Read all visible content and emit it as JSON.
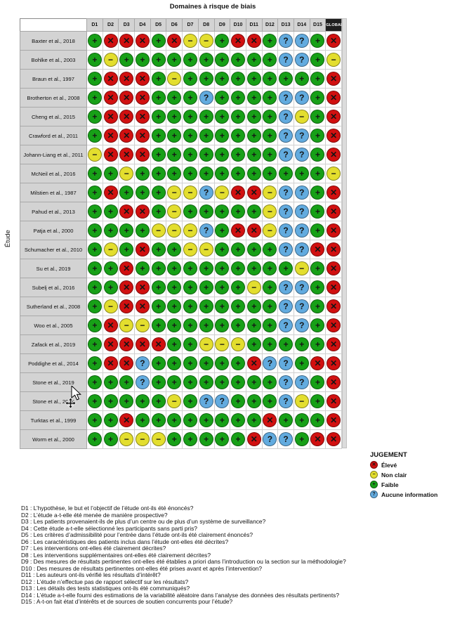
{
  "title": "Domaines à risque de biais",
  "y_axis_label": "Étude",
  "legend": {
    "title": "JUGEMENT",
    "items": [
      {
        "label": "Élevé",
        "symbol": "✕",
        "color": "#d11010"
      },
      {
        "label": "Non clair",
        "symbol": "−",
        "color": "#e3de2e"
      },
      {
        "label": "Faible",
        "symbol": "+",
        "color": "#17a017"
      },
      {
        "label": "Aucune information",
        "symbol": "?",
        "color": "#62abdf"
      }
    ]
  },
  "symbol_colors": {
    "+": "#17a017",
    "X": "#d11010",
    "-": "#e3de2e",
    "?": "#62abdf"
  },
  "glyphs": {
    "+": "+",
    "X": "✕",
    "-": "−",
    "?": "?"
  },
  "judgment_key": {
    "+": "Faible",
    "X": "Élevé",
    "-": "Non clair",
    "?": "Aucune information"
  },
  "judgment_ascii": {
    "+": "faible",
    "X": "eleve",
    "-": "non-clair",
    "?": "aucune-information"
  },
  "chart_data": {
    "type": "heatmap",
    "title": "Domaines à risque de biais",
    "ylabel": "Étude",
    "legend_position": "right",
    "columns": [
      "D1",
      "D2",
      "D3",
      "D4",
      "D5",
      "D6",
      "D7",
      "D8",
      "D9",
      "D10",
      "D11",
      "D12",
      "D13",
      "D14",
      "D15",
      "GLOBAL"
    ],
    "rows": [
      {
        "study": "Baxter et al., 2018",
        "judgments": [
          "+",
          "X",
          "X",
          "X",
          "+",
          "X",
          "-",
          "-",
          "+",
          "X",
          "X",
          "+",
          "?",
          "?",
          "+",
          "X"
        ]
      },
      {
        "study": "Bohlke et al., 2003",
        "judgments": [
          "+",
          "-",
          "+",
          "+",
          "+",
          "+",
          "+",
          "+",
          "+",
          "+",
          "+",
          "+",
          "?",
          "?",
          "+",
          "-"
        ]
      },
      {
        "study": "Braun et al., 1997",
        "judgments": [
          "+",
          "X",
          "X",
          "X",
          "+",
          "-",
          "+",
          "+",
          "+",
          "+",
          "+",
          "+",
          "+",
          "+",
          "+",
          "X"
        ]
      },
      {
        "study": "Brotherton et al., 2008",
        "judgments": [
          "+",
          "X",
          "X",
          "X",
          "+",
          "+",
          "+",
          "?",
          "+",
          "+",
          "+",
          "+",
          "?",
          "?",
          "+",
          "X"
        ]
      },
      {
        "study": "Cheng et al., 2015",
        "judgments": [
          "+",
          "X",
          "X",
          "X",
          "+",
          "+",
          "+",
          "+",
          "+",
          "+",
          "+",
          "+",
          "?",
          "-",
          "+",
          "X"
        ]
      },
      {
        "study": "Crawford et al., 2011",
        "judgments": [
          "+",
          "X",
          "X",
          "X",
          "+",
          "+",
          "+",
          "+",
          "+",
          "+",
          "+",
          "+",
          "?",
          "?",
          "+",
          "X"
        ]
      },
      {
        "study": "Johann-Liang et al., 2011",
        "judgments": [
          "-",
          "X",
          "X",
          "X",
          "+",
          "+",
          "+",
          "+",
          "+",
          "+",
          "+",
          "+",
          "?",
          "?",
          "+",
          "X"
        ]
      },
      {
        "study": "McNeil et al., 2016",
        "judgments": [
          "+",
          "+",
          "-",
          "+",
          "+",
          "+",
          "+",
          "+",
          "+",
          "+",
          "+",
          "+",
          "+",
          "+",
          "+",
          "-"
        ]
      },
      {
        "study": "Milstien et al., 1987",
        "judgments": [
          "+",
          "X",
          "+",
          "+",
          "+",
          "-",
          "-",
          "?",
          "-",
          "X",
          "X",
          "-",
          "?",
          "?",
          "+",
          "X"
        ]
      },
      {
        "study": "Pahud et al., 2013",
        "judgments": [
          "+",
          "+",
          "X",
          "X",
          "+",
          "-",
          "+",
          "+",
          "+",
          "+",
          "+",
          "-",
          "?",
          "?",
          "+",
          "X"
        ]
      },
      {
        "study": "Patja et al., 2000",
        "judgments": [
          "+",
          "+",
          "+",
          "+",
          "-",
          "-",
          "-",
          "?",
          "+",
          "X",
          "X",
          "-",
          "?",
          "?",
          "+",
          "X"
        ]
      },
      {
        "study": "Schumacher et al., 2010",
        "judgments": [
          "+",
          "-",
          "+",
          "X",
          "+",
          "+",
          "-",
          "-",
          "+",
          "+",
          "+",
          "+",
          "?",
          "?",
          "X",
          "X"
        ]
      },
      {
        "study": "Su et al., 2019",
        "judgments": [
          "+",
          "+",
          "X",
          "+",
          "+",
          "+",
          "+",
          "+",
          "+",
          "+",
          "+",
          "+",
          "+",
          "-",
          "+",
          "X"
        ]
      },
      {
        "study": "Subelj et al., 2016",
        "judgments": [
          "+",
          "+",
          "X",
          "X",
          "+",
          "+",
          "+",
          "+",
          "+",
          "+",
          "-",
          "+",
          "?",
          "?",
          "+",
          "X"
        ]
      },
      {
        "study": "Sutherland et al., 2008",
        "judgments": [
          "+",
          "-",
          "X",
          "X",
          "+",
          "+",
          "+",
          "+",
          "+",
          "+",
          "+",
          "+",
          "?",
          "?",
          "+",
          "X"
        ]
      },
      {
        "study": "Woo et al., 2005",
        "judgments": [
          "+",
          "X",
          "-",
          "-",
          "+",
          "+",
          "+",
          "+",
          "+",
          "+",
          "+",
          "+",
          "?",
          "?",
          "+",
          "X"
        ]
      },
      {
        "study": "Zafack et al., 2019",
        "judgments": [
          "+",
          "X",
          "X",
          "X",
          "X",
          "+",
          "+",
          "-",
          "-",
          "-",
          "+",
          "+",
          "+",
          "+",
          "+",
          "X"
        ]
      },
      {
        "study": "Poddighe et al., 2014",
        "judgments": [
          "+",
          "X",
          "X",
          "?",
          "+",
          "+",
          "+",
          "+",
          "+",
          "+",
          "X",
          "?",
          "?",
          "+",
          "X",
          "X"
        ]
      },
      {
        "study": "Stone et al., 2019",
        "judgments": [
          "+",
          "+",
          "+",
          "?",
          "+",
          "+",
          "+",
          "+",
          "+",
          "+",
          "+",
          "+",
          "?",
          "?",
          "+",
          "X"
        ]
      },
      {
        "study": "Stone et al., 2019",
        "judgments": [
          "+",
          "+",
          "+",
          "+",
          "+",
          "-",
          "+",
          "?",
          "?",
          "+",
          "+",
          "+",
          "?",
          "-",
          "+",
          "X"
        ]
      },
      {
        "study": "Turktas et al., 1999",
        "judgments": [
          "+",
          "+",
          "X",
          "+",
          "+",
          "+",
          "+",
          "+",
          "+",
          "+",
          "+",
          "X",
          "+",
          "+",
          "+",
          "X"
        ]
      },
      {
        "study": "Worm et al., 2000",
        "judgments": [
          "+",
          "+",
          "-",
          "-",
          "-",
          "+",
          "+",
          "+",
          "+",
          "+",
          "X",
          "?",
          "?",
          "+",
          "X",
          "X"
        ]
      }
    ]
  },
  "footnotes": [
    "D1 : L’hypothèse, le but et l’objectif de l’étude ont-ils été énoncés?",
    "D2 : L’étude a-t-elle été menée de manière prospective?",
    "D3 : Les patients provenaient-ils de plus d’un centre ou de plus d’un système de surveillance?",
    "D4 : Cette étude a-t-elle sélectionné les participants sans parti pris?",
    "D5 : Les critères d’admissibilité pour l’entrée dans l’étude ont-ils été clairement énoncés?",
    "D6 : Les caractéristiques des patients inclus dans l’étude ont-elles été décrites?",
    "D7 : Les interventions ont-elles été clairement décrites?",
    "D8 : Les interventions supplémentaires ont-elles été clairement décrites?",
    "D9 : Des mesures de résultats pertinentes ont-elles été établies a priori dans l’introduction ou la section sur la méthodologie?",
    "D10 : Des mesures de résultats pertinentes ont-elles été prises avant et après l’intervention?",
    "D11 : Les auteurs ont-ils vérifié les résultats d’intérêt?",
    "D12 : L’étude n’effectue pas de rapport sélectif sur les résultats?",
    "D13 : Les détails des tests statistiques ont-ils été communiqués?",
    "D14 : L’étude a-t-elle fourni des estimations de la variabilité aléatoire dans l’analyse des données des résultats pertinents?",
    "D15 : A-t-on fait état d’intérêts et de sources de soutien concurrents pour l’étude?"
  ]
}
